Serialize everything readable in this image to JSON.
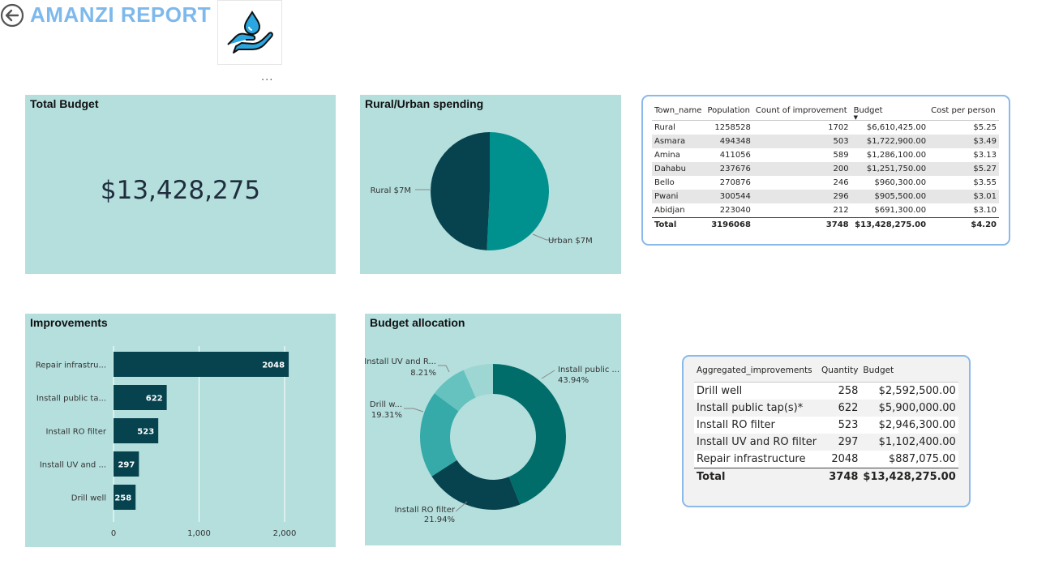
{
  "header": {
    "title": "AMANZI REPORT",
    "back_icon": "back-arrow-circle-icon",
    "logo_icon": "water-drop-hand-icon",
    "more_options": "...",
    "accent_color": "#7db9ec"
  },
  "total_budget": {
    "title": "Total Budget",
    "value": "$13,428,275"
  },
  "rural_urban": {
    "title": "Rural/Urban spending",
    "chart_data": {
      "type": "pie",
      "categories": [
        "Urban",
        "Rural"
      ],
      "values": [
        6.82,
        6.61
      ],
      "value_unit": "$M",
      "data_labels": [
        "Urban $7M",
        "Rural $7M"
      ],
      "colors": [
        "#00918e",
        "#07434f"
      ]
    }
  },
  "improvements": {
    "title": "Improvements",
    "chart_data": {
      "type": "bar",
      "orientation": "horizontal",
      "categories": [
        "Repair infrastru...",
        "Install public ta...",
        "Install RO filter",
        "Install UV and ...",
        "Drill well"
      ],
      "values": [
        2048,
        622,
        523,
        297,
        258
      ],
      "data_labels": [
        "2048",
        "622",
        "523",
        "297",
        "258"
      ],
      "xlim": [
        0,
        2500
      ],
      "xticks": [
        "0",
        "1,000",
        "2,000"
      ],
      "grid": true,
      "color": "#07434f"
    }
  },
  "budget_allocation": {
    "title": "Budget allocation",
    "chart_data": {
      "type": "pie",
      "donut": true,
      "categories": [
        "Install public ...",
        "Install RO filter",
        "Drill w...",
        "Install UV and R...",
        ""
      ],
      "values": [
        43.94,
        21.94,
        19.31,
        8.21,
        6.6
      ],
      "data_labels": [
        "43.94%",
        "21.94%",
        "19.31%",
        "8.21%",
        ""
      ],
      "colors": [
        "#006d6a",
        "#07434f",
        "#35aaa8",
        "#66c2bf",
        "#9dd6d3"
      ]
    }
  },
  "town_table": {
    "columns": [
      "Town_name",
      "Population",
      "Count of improvement",
      "Budget",
      "Cost per person"
    ],
    "rows": [
      [
        "Rural",
        "1258528",
        "1702",
        "$6,610,425.00",
        "$5.25"
      ],
      [
        "Asmara",
        "494348",
        "503",
        "$1,722,900.00",
        "$3.49"
      ],
      [
        "Amina",
        "411056",
        "589",
        "$1,286,100.00",
        "$3.13"
      ],
      [
        "Dahabu",
        "237676",
        "200",
        "$1,251,750.00",
        "$5.27"
      ],
      [
        "Bello",
        "270876",
        "246",
        "$960,300.00",
        "$3.55"
      ],
      [
        "Pwani",
        "300544",
        "296",
        "$905,500.00",
        "$3.01"
      ],
      [
        "Abidjan",
        "223040",
        "212",
        "$691,300.00",
        "$3.10"
      ]
    ],
    "total": [
      "Total",
      "3196068",
      "3748",
      "$13,428,275.00",
      "$4.20"
    ]
  },
  "agg_table": {
    "columns": [
      "Aggregated_improvements",
      "Quantity",
      "Budget"
    ],
    "rows": [
      [
        "Drill well",
        "258",
        "$2,592,500.00"
      ],
      [
        "Install public tap(s)*",
        "622",
        "$5,900,000.00"
      ],
      [
        "Install RO filter",
        "523",
        "$2,946,300.00"
      ],
      [
        "Install UV and RO filter",
        "297",
        "$1,102,400.00"
      ],
      [
        "Repair infrastructure",
        "2048",
        "$887,075.00"
      ]
    ],
    "total": [
      "Total",
      "3748",
      "$13,428,275.00"
    ]
  }
}
